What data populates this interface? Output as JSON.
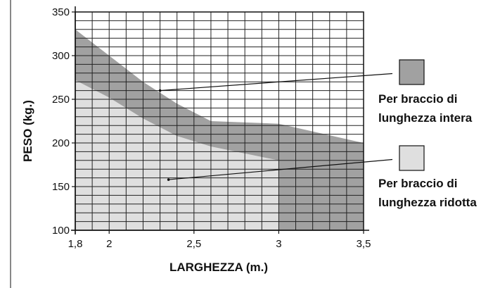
{
  "chart_data": {
    "type": "area",
    "title": "",
    "xlabel": "LARGHEZZA (m.)",
    "ylabel": "PESO (kg.)",
    "xlim": [
      1.8,
      3.5
    ],
    "ylim": [
      100,
      350
    ],
    "x_ticks": [
      1.8,
      2,
      2.5,
      3,
      3.5
    ],
    "x_tick_labels": [
      "1,8",
      "2",
      "2,5",
      "3",
      "3,5"
    ],
    "y_ticks": [
      100,
      150,
      200,
      250,
      300,
      350
    ],
    "y_tick_labels": [
      "100",
      "150",
      "200",
      "250",
      "300",
      "350"
    ],
    "grid": true,
    "legend_position": "right",
    "series": [
      {
        "name": "Per braccio di lunghezza intera",
        "color": "#a1a1a1",
        "points": [
          [
            1.8,
            330
          ],
          [
            2.0,
            300
          ],
          [
            2.2,
            270
          ],
          [
            2.4,
            245
          ],
          [
            2.6,
            225
          ],
          [
            3.0,
            222
          ],
          [
            3.5,
            200
          ]
        ]
      },
      {
        "name": "Per braccio di lunghezza ridotta",
        "color": "#dfdfdf",
        "points": [
          [
            1.8,
            272
          ],
          [
            2.0,
            252
          ],
          [
            2.2,
            228
          ],
          [
            2.4,
            208
          ],
          [
            2.6,
            196
          ],
          [
            3.0,
            180
          ],
          [
            3.0,
            100
          ]
        ]
      }
    ],
    "legend": [
      {
        "line1": "Per braccio di",
        "line2": "lunghezza intera",
        "color": "#a1a1a1"
      },
      {
        "line1": "Per braccio di",
        "line2": "lunghezza ridotta",
        "color": "#dfdfdf"
      }
    ]
  }
}
